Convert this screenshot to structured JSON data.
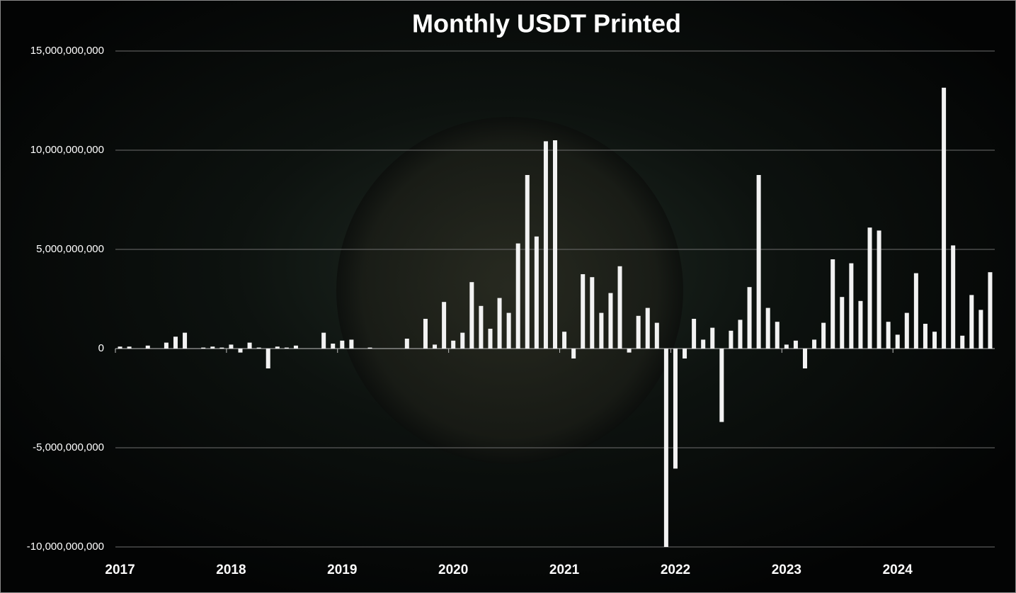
{
  "chart_data": {
    "type": "bar",
    "title": "Monthly USDT Printed",
    "categories": [
      "2017",
      null,
      null,
      null,
      null,
      null,
      null,
      null,
      null,
      null,
      null,
      null,
      "2018",
      null,
      null,
      null,
      null,
      null,
      null,
      null,
      null,
      null,
      null,
      null,
      "2019",
      null,
      null,
      null,
      null,
      null,
      null,
      null,
      null,
      null,
      null,
      null,
      "2020",
      null,
      null,
      null,
      null,
      null,
      null,
      null,
      null,
      null,
      null,
      null,
      "2021",
      null,
      null,
      null,
      null,
      null,
      null,
      null,
      null,
      null,
      null,
      null,
      "2022",
      null,
      null,
      null,
      null,
      null,
      null,
      null,
      null,
      null,
      null,
      null,
      "2023",
      null,
      null,
      null,
      null,
      null,
      null,
      null,
      null,
      null,
      null,
      null,
      "2024",
      null,
      null,
      null,
      null,
      null,
      null,
      null,
      null,
      null,
      null
    ],
    "values": [
      100000000,
      100000000,
      0,
      150000000,
      0,
      300000000,
      600000000,
      800000000,
      0,
      50000000,
      100000000,
      50000000,
      200000000,
      -200000000,
      300000000,
      50000000,
      -1000000000,
      100000000,
      50000000,
      150000000,
      0,
      0,
      800000000,
      250000000,
      400000000,
      450000000,
      0,
      50000000,
      0,
      0,
      0,
      500000000,
      0,
      1500000000,
      200000000,
      2350000000,
      400000000,
      800000000,
      3350000000,
      2150000000,
      1000000000,
      2550000000,
      1800000000,
      5300000000,
      8750000000,
      5650000000,
      10450000000,
      10500000000,
      850000000,
      -500000000,
      3750000000,
      3600000000,
      1800000000,
      2800000000,
      4150000000,
      -200000000,
      1650000000,
      2050000000,
      1300000000,
      -10000000000,
      -6050000000,
      -500000000,
      1500000000,
      450000000,
      1050000000,
      -3700000000,
      900000000,
      1450000000,
      3100000000,
      8750000000,
      2050000000,
      1350000000,
      200000000,
      400000000,
      -1000000000,
      450000000,
      1300000000,
      4500000000,
      2600000000,
      4300000000,
      2400000000,
      6100000000,
      5950000000,
      1350000000,
      700000000,
      1800000000,
      3800000000,
      1250000000,
      850000000,
      13150000000,
      5200000000,
      650000000,
      2700000000,
      1950000000,
      3850000000
    ],
    "color": "#f2f2f2",
    "ylim": [
      -10000000000,
      15000000000
    ],
    "yticks": [
      {
        "value": -10000000000,
        "label": "-10,000,000,000"
      },
      {
        "value": -5000000000,
        "label": "-5,000,000,000"
      },
      0,
      {
        "value": 5000000000,
        "label": "5,000,000,000"
      },
      {
        "value": 10000000000,
        "label": "10,000,000,000"
      },
      {
        "value": 15000000000,
        "label": "15,000,000,000"
      }
    ],
    "grid": true
  }
}
